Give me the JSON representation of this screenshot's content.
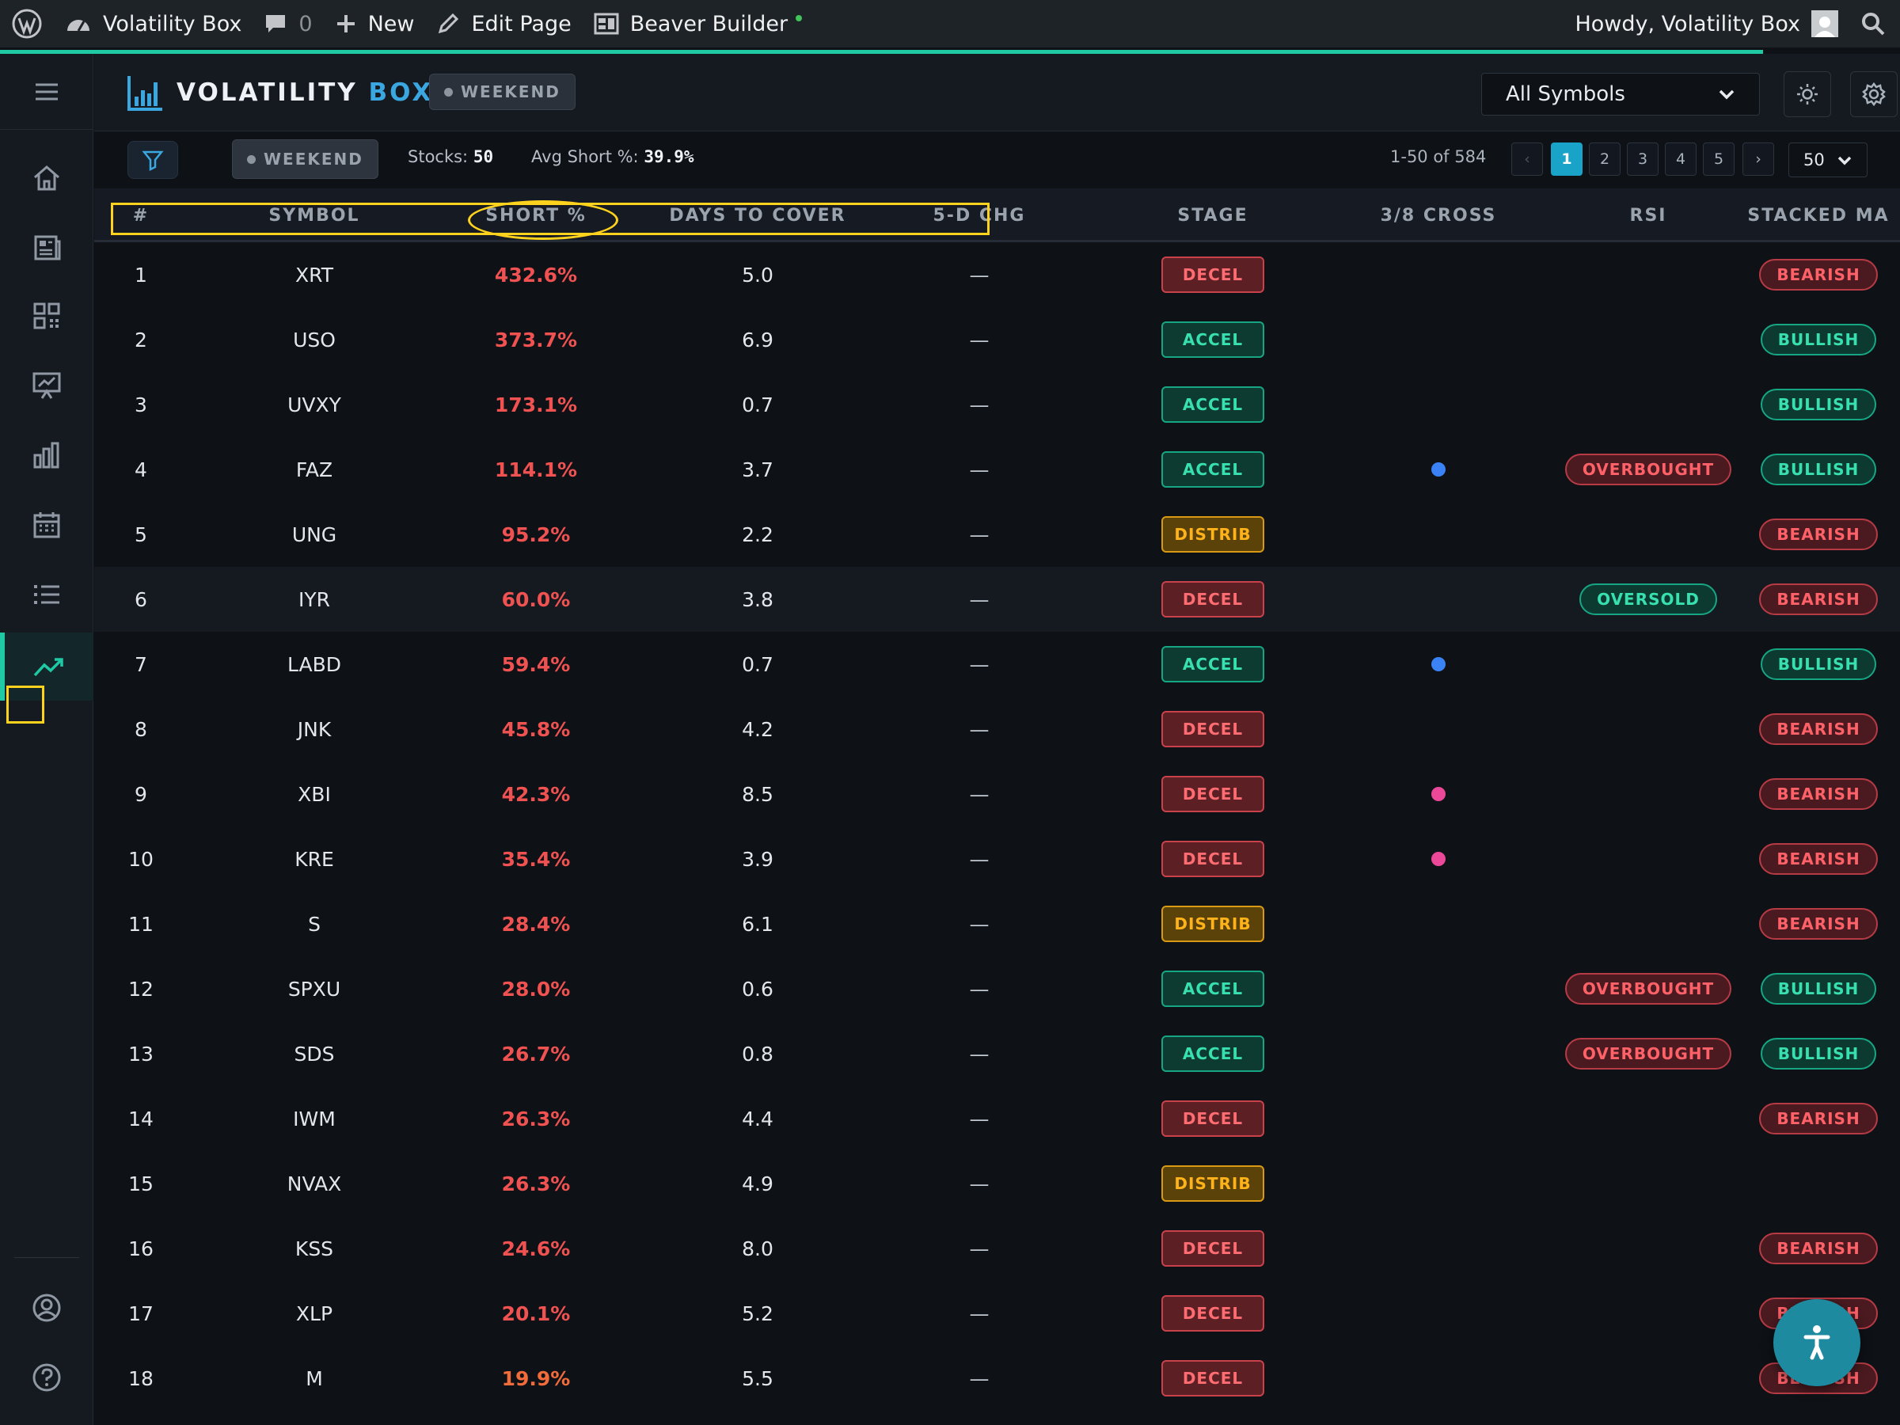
{
  "admin_bar": {
    "site_name": "Volatility Box",
    "comments_count": "0",
    "new_label": "New",
    "edit_label": "Edit Page",
    "builder_label": "Beaver Builder",
    "greeting": "Howdy, Volatility Box"
  },
  "header": {
    "logo_main": "VOLATILITY",
    "logo_accent": "BOX",
    "session_badge": "WEEKEND",
    "symbol_filter": "All Symbols"
  },
  "toolbar": {
    "session_badge": "WEEKEND",
    "stocks_label": "Stocks:",
    "stocks_value": "50",
    "avg_short_label": "Avg Short %:",
    "avg_short_value": "39.9%",
    "range_text": "1-50 of 584",
    "pages": [
      "1",
      "2",
      "3",
      "4",
      "5"
    ],
    "prev": "‹",
    "next": "›",
    "per_page": "50"
  },
  "table": {
    "columns": [
      "#",
      "SYMBOL",
      "SHORT %",
      "DAYS TO COVER",
      "5-D CHG",
      "STAGE",
      "3/8 CROSS",
      "RSI",
      "STACKED MA"
    ],
    "rows": [
      {
        "rank": "1",
        "symbol": "XRT",
        "short": "432.6%",
        "dtc": "5.0",
        "chg": "—",
        "stage": "DECEL",
        "cross": "",
        "rsi": "",
        "ma": "BEARISH"
      },
      {
        "rank": "2",
        "symbol": "USO",
        "short": "373.7%",
        "dtc": "6.9",
        "chg": "—",
        "stage": "ACCEL",
        "cross": "",
        "rsi": "",
        "ma": "BULLISH"
      },
      {
        "rank": "3",
        "symbol": "UVXY",
        "short": "173.1%",
        "dtc": "0.7",
        "chg": "—",
        "stage": "ACCEL",
        "cross": "",
        "rsi": "",
        "ma": "BULLISH"
      },
      {
        "rank": "4",
        "symbol": "FAZ",
        "short": "114.1%",
        "dtc": "3.7",
        "chg": "—",
        "stage": "ACCEL",
        "cross": "blue",
        "rsi": "OVERBOUGHT",
        "ma": "BULLISH"
      },
      {
        "rank": "5",
        "symbol": "UNG",
        "short": "95.2%",
        "dtc": "2.2",
        "chg": "—",
        "stage": "DISTRIB",
        "cross": "",
        "rsi": "",
        "ma": "BEARISH"
      },
      {
        "rank": "6",
        "symbol": "IYR",
        "short": "60.0%",
        "dtc": "3.8",
        "chg": "—",
        "stage": "DECEL",
        "cross": "",
        "rsi": "OVERSOLD",
        "ma": "BEARISH"
      },
      {
        "rank": "7",
        "symbol": "LABD",
        "short": "59.4%",
        "dtc": "0.7",
        "chg": "—",
        "stage": "ACCEL",
        "cross": "blue",
        "rsi": "",
        "ma": "BULLISH"
      },
      {
        "rank": "8",
        "symbol": "JNK",
        "short": "45.8%",
        "dtc": "4.2",
        "chg": "—",
        "stage": "DECEL",
        "cross": "",
        "rsi": "",
        "ma": "BEARISH"
      },
      {
        "rank": "9",
        "symbol": "XBI",
        "short": "42.3%",
        "dtc": "8.5",
        "chg": "—",
        "stage": "DECEL",
        "cross": "pink",
        "rsi": "",
        "ma": "BEARISH"
      },
      {
        "rank": "10",
        "symbol": "KRE",
        "short": "35.4%",
        "dtc": "3.9",
        "chg": "—",
        "stage": "DECEL",
        "cross": "pink",
        "rsi": "",
        "ma": "BEARISH"
      },
      {
        "rank": "11",
        "symbol": "S",
        "short": "28.4%",
        "dtc": "6.1",
        "chg": "—",
        "stage": "DISTRIB",
        "cross": "",
        "rsi": "",
        "ma": "BEARISH"
      },
      {
        "rank": "12",
        "symbol": "SPXU",
        "short": "28.0%",
        "dtc": "0.6",
        "chg": "—",
        "stage": "ACCEL",
        "cross": "",
        "rsi": "OVERBOUGHT",
        "ma": "BULLISH"
      },
      {
        "rank": "13",
        "symbol": "SDS",
        "short": "26.7%",
        "dtc": "0.8",
        "chg": "—",
        "stage": "ACCEL",
        "cross": "",
        "rsi": "OVERBOUGHT",
        "ma": "BULLISH"
      },
      {
        "rank": "14",
        "symbol": "IWM",
        "short": "26.3%",
        "dtc": "4.4",
        "chg": "—",
        "stage": "DECEL",
        "cross": "",
        "rsi": "",
        "ma": "BEARISH"
      },
      {
        "rank": "15",
        "symbol": "NVAX",
        "short": "26.3%",
        "dtc": "4.9",
        "chg": "—",
        "stage": "DISTRIB",
        "cross": "",
        "rsi": "",
        "ma": ""
      },
      {
        "rank": "16",
        "symbol": "KSS",
        "short": "24.6%",
        "dtc": "8.0",
        "chg": "—",
        "stage": "DECEL",
        "cross": "",
        "rsi": "",
        "ma": "BEARISH"
      },
      {
        "rank": "17",
        "symbol": "XLP",
        "short": "20.1%",
        "dtc": "5.2",
        "chg": "—",
        "stage": "DECEL",
        "cross": "",
        "rsi": "",
        "ma": "BEARISH"
      },
      {
        "rank": "18",
        "symbol": "M",
        "short": "19.9%",
        "dtc": "5.5",
        "chg": "—",
        "stage": "DECEL",
        "cross": "",
        "rsi": "",
        "ma": "BEARISH"
      }
    ]
  },
  "colors": {
    "accent": "#1ec9a3",
    "short_pct": "#f05252",
    "cross_blue": "#3b82f6",
    "cross_pink": "#ec4899",
    "annotation": "#ffd21e"
  },
  "icons": {
    "admin_bar": [
      "wordpress-icon",
      "dashboard-icon",
      "comment-icon",
      "plus-icon",
      "pencil-icon",
      "builder-icon",
      "search-icon"
    ],
    "rail": [
      "menu-icon",
      "home-icon",
      "newspaper-icon",
      "qr-grid-icon",
      "presentation-chart-icon",
      "bar-chart-icon",
      "calendar-icon",
      "list-icon",
      "trending-up-icon",
      "user-circle-icon",
      "help-icon"
    ],
    "header": [
      "sun-icon",
      "gear-icon",
      "refresh-icon",
      "filter-icon",
      "accessibility-icon"
    ]
  }
}
